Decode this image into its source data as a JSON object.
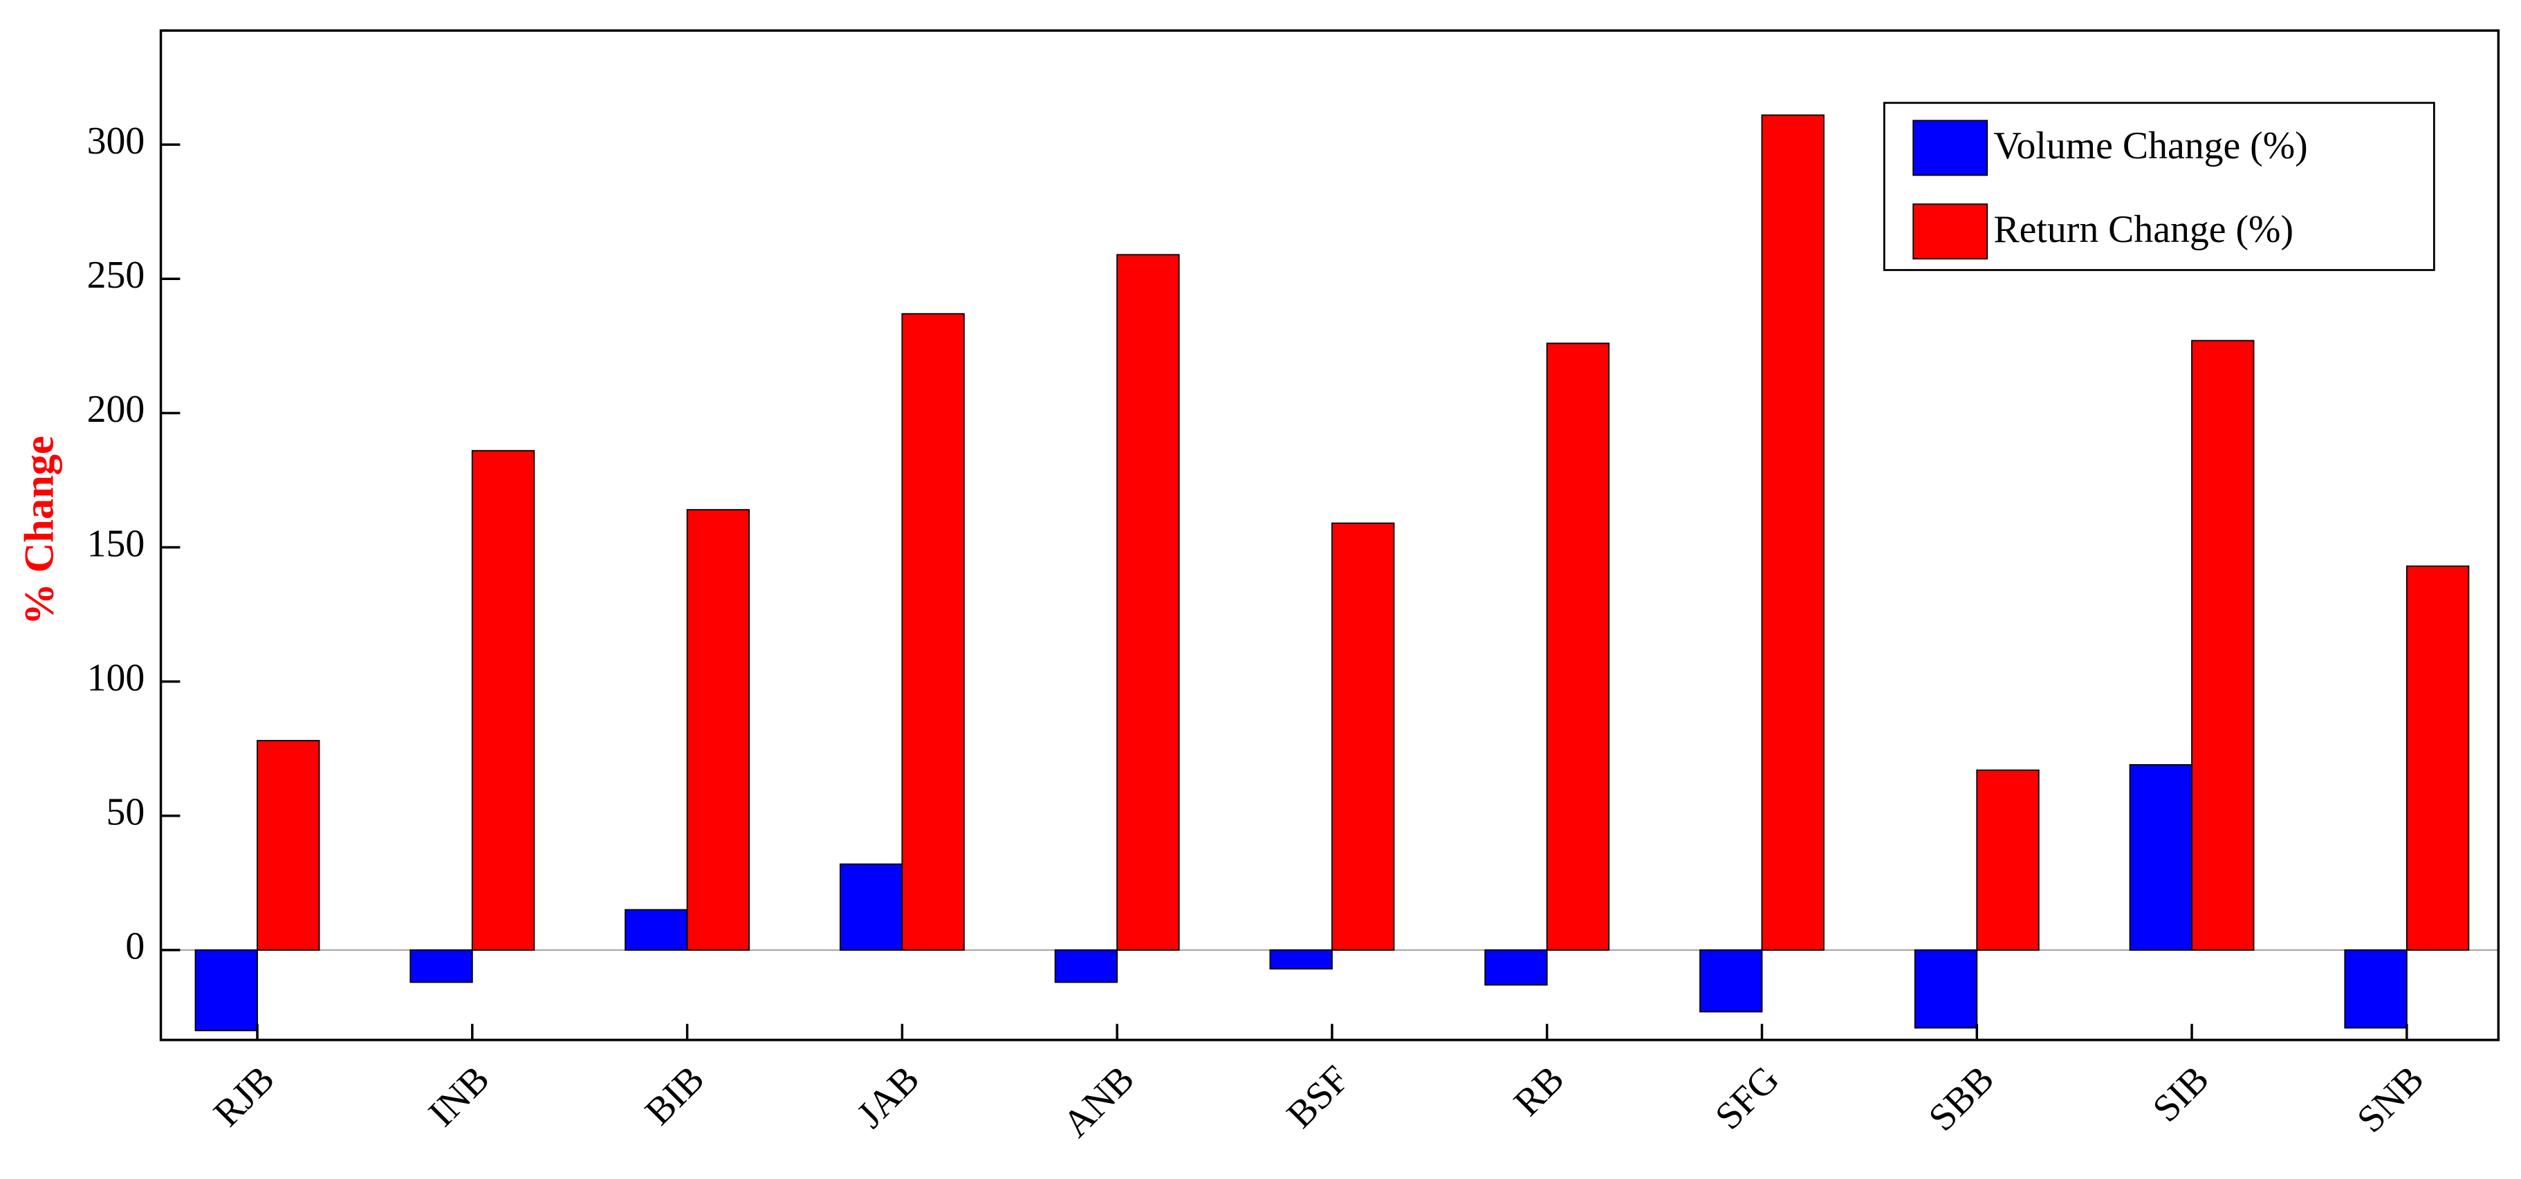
{
  "chart_data": {
    "type": "bar",
    "y_label": "% Change",
    "categories": [
      "RJB",
      "INB",
      "BIB",
      "JAB",
      "ANB",
      "BSF",
      "RB",
      "SFG",
      "SBB",
      "SIB",
      "SNB"
    ],
    "series": [
      {
        "name": "Volume Change (%)",
        "color": "#0000ff",
        "values": [
          -30,
          -12,
          15,
          32,
          -12,
          -7,
          -13,
          -23,
          -29,
          69,
          -29
        ]
      },
      {
        "name": "Return Change (%)",
        "color": "#ff0000",
        "values": [
          78,
          186,
          164,
          237,
          259,
          159,
          226,
          311,
          67,
          227,
          143
        ]
      }
    ],
    "ylim": [
      -33.5,
      342.5
    ],
    "yticks": [
      0,
      50,
      100,
      150,
      200,
      250,
      300
    ],
    "legend": "upper right"
  }
}
